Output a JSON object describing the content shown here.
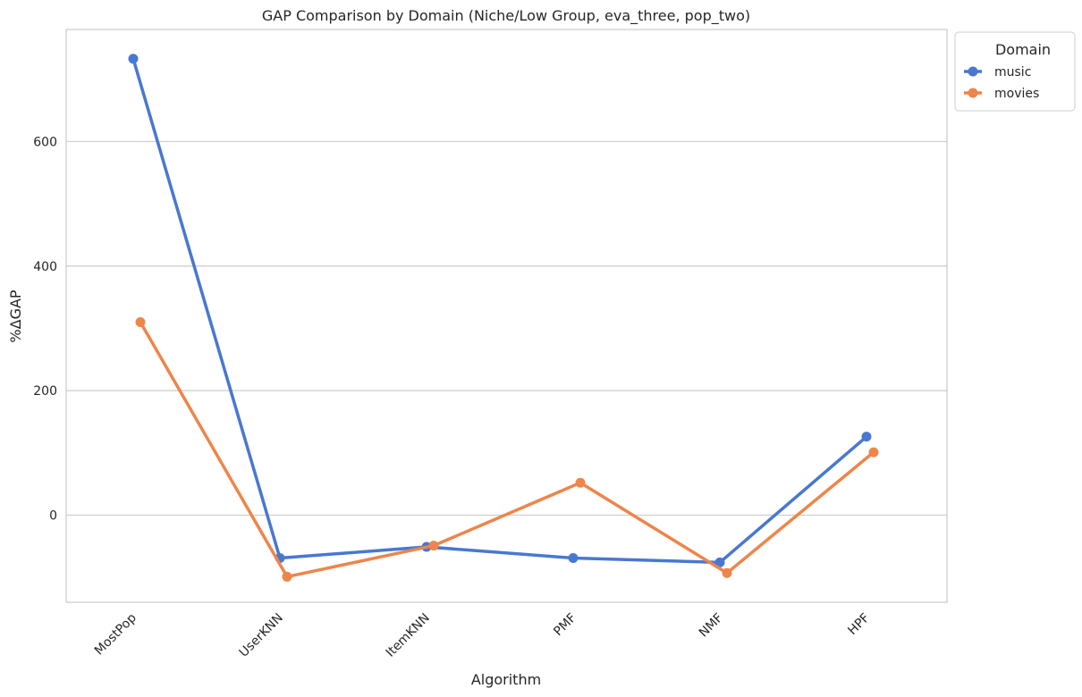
{
  "chart_data": {
    "type": "line",
    "title": "GAP Comparison by Domain (Niche/Low Group, eva_three, pop_two)",
    "xlabel": "Algorithm",
    "ylabel": "%ΔGAP",
    "categories": [
      "MostPop",
      "UserKNN",
      "ItemKNN",
      "PMF",
      "NMF",
      "HPF"
    ],
    "ylim": [
      -140,
      780
    ],
    "yticks": [
      0,
      200,
      400,
      600
    ],
    "grid": "horizontal",
    "legend": {
      "title": "Domain",
      "placement": "outside-top-right"
    },
    "series": [
      {
        "name": "music",
        "color": "#4878d0",
        "values": [
          733,
          -69,
          -51,
          -69,
          -76,
          126
        ]
      },
      {
        "name": "movies",
        "color": "#ee854a",
        "values": [
          310,
          -99,
          -49,
          52,
          -93,
          101
        ]
      }
    ]
  }
}
